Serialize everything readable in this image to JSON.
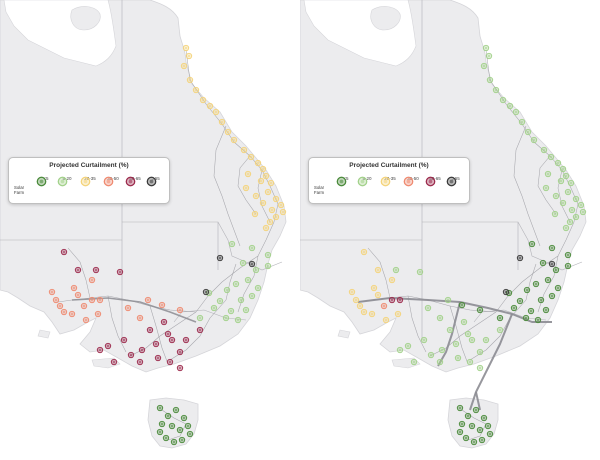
{
  "colors": {
    "land": "#ececee",
    "water": "#ffffff",
    "coast": "#d5d5d9",
    "state_border": "#b2b2b8",
    "network": "#9a9aa0",
    "interconnector": "#8c8c92"
  },
  "panels": [
    {
      "legend": {
        "title": "Projected Curtailment (%)",
        "marker_label": "Solar Farm",
        "bins": [
          {
            "label": "<5",
            "color": "#4a8a3a"
          },
          {
            "label": "5-20",
            "color": "#a2d18a"
          },
          {
            "label": "20-35",
            "color": "#f4d37a"
          },
          {
            "label": "35-50",
            "color": "#ef8a70"
          },
          {
            "label": "50-65",
            "color": "#9c2a4c"
          },
          {
            "label": ">65",
            "color": "#3a3a3a"
          }
        ]
      },
      "farms": [
        [
          186,
          48,
          2
        ],
        [
          189,
          56,
          2
        ],
        [
          184,
          66,
          2
        ],
        [
          190,
          80,
          2
        ],
        [
          196,
          90,
          2
        ],
        [
          203,
          100,
          2
        ],
        [
          210,
          106,
          2
        ],
        [
          216,
          112,
          2
        ],
        [
          222,
          122,
          2
        ],
        [
          228,
          132,
          2
        ],
        [
          234,
          140,
          2
        ],
        [
          244,
          150,
          2
        ],
        [
          251,
          157,
          2
        ],
        [
          258,
          163,
          2
        ],
        [
          263,
          169,
          2
        ],
        [
          266,
          176,
          2
        ],
        [
          271,
          183,
          2
        ],
        [
          268,
          192,
          2
        ],
        [
          276,
          199,
          2
        ],
        [
          281,
          205,
          2
        ],
        [
          272,
          210,
          2
        ],
        [
          263,
          203,
          2
        ],
        [
          256,
          196,
          2
        ],
        [
          246,
          188,
          2
        ],
        [
          248,
          174,
          2
        ],
        [
          255,
          214,
          2
        ],
        [
          276,
          217,
          2
        ],
        [
          283,
          212,
          2
        ],
        [
          270,
          222,
          2
        ],
        [
          266,
          228,
          2
        ],
        [
          261,
          181,
          2
        ],
        [
          232,
          244,
          1
        ],
        [
          252,
          248,
          1
        ],
        [
          268,
          255,
          1
        ],
        [
          243,
          263,
          1
        ],
        [
          256,
          270,
          1
        ],
        [
          268,
          266,
          1
        ],
        [
          248,
          280,
          1
        ],
        [
          236,
          284,
          1
        ],
        [
          227,
          290,
          1
        ],
        [
          258,
          288,
          1
        ],
        [
          241,
          300,
          1
        ],
        [
          220,
          301,
          1
        ],
        [
          231,
          311,
          1
        ],
        [
          209,
          293,
          1
        ],
        [
          252,
          296,
          1
        ],
        [
          238,
          320,
          1
        ],
        [
          214,
          308,
          1
        ],
        [
          226,
          318,
          1
        ],
        [
          200,
          318,
          1
        ],
        [
          246,
          310,
          1
        ],
        [
          220,
          258,
          5
        ],
        [
          206,
          292,
          5
        ],
        [
          252,
          264,
          5
        ],
        [
          64,
          252,
          4
        ],
        [
          78,
          270,
          4
        ],
        [
          96,
          270,
          4
        ],
        [
          120,
          272,
          4
        ],
        [
          150,
          330,
          4
        ],
        [
          168,
          334,
          4
        ],
        [
          156,
          344,
          4
        ],
        [
          142,
          350,
          4
        ],
        [
          131,
          355,
          4
        ],
        [
          140,
          362,
          4
        ],
        [
          114,
          362,
          4
        ],
        [
          100,
          350,
          4
        ],
        [
          158,
          358,
          4
        ],
        [
          172,
          340,
          4
        ],
        [
          180,
          352,
          4
        ],
        [
          186,
          340,
          4
        ],
        [
          180,
          368,
          4
        ],
        [
          170,
          362,
          4
        ],
        [
          164,
          322,
          4
        ],
        [
          200,
          330,
          4
        ],
        [
          124,
          340,
          4
        ],
        [
          108,
          346,
          4
        ],
        [
          56,
          300,
          3
        ],
        [
          64,
          312,
          3
        ],
        [
          78,
          295,
          3
        ],
        [
          84,
          306,
          3
        ],
        [
          92,
          300,
          3
        ],
        [
          98,
          314,
          3
        ],
        [
          74,
          288,
          3
        ],
        [
          86,
          320,
          3
        ],
        [
          92,
          280,
          3
        ],
        [
          100,
          300,
          3
        ],
        [
          52,
          292,
          3
        ],
        [
          128,
          308,
          3
        ],
        [
          140,
          318,
          3
        ],
        [
          162,
          305,
          3
        ],
        [
          180,
          310,
          3
        ],
        [
          148,
          300,
          3
        ],
        [
          60,
          306,
          3
        ],
        [
          72,
          314,
          3
        ],
        [
          160,
          408,
          0
        ],
        [
          168,
          416,
          0
        ],
        [
          176,
          410,
          0
        ],
        [
          184,
          418,
          0
        ],
        [
          162,
          424,
          0
        ],
        [
          172,
          426,
          0
        ],
        [
          180,
          430,
          0
        ],
        [
          188,
          426,
          0
        ],
        [
          166,
          438,
          0
        ],
        [
          174,
          442,
          0
        ],
        [
          182,
          440,
          0
        ],
        [
          190,
          434,
          0
        ],
        [
          160,
          432,
          0
        ]
      ],
      "show_interconnector": false
    },
    {
      "legend": {
        "title": "Projected Curtailment (%)",
        "marker_label": "Solar Farm",
        "bins": [
          {
            "label": "<5",
            "color": "#4a8a3a"
          },
          {
            "label": "5-20",
            "color": "#a2d18a"
          },
          {
            "label": "20-35",
            "color": "#f4d37a"
          },
          {
            "label": "35-50",
            "color": "#ef8a70"
          },
          {
            "label": "50-65",
            "color": "#9c2a4c"
          },
          {
            "label": ">65",
            "color": "#3a3a3a"
          }
        ]
      },
      "farms": [
        [
          186,
          48,
          1
        ],
        [
          189,
          56,
          1
        ],
        [
          184,
          66,
          1
        ],
        [
          190,
          80,
          1
        ],
        [
          196,
          90,
          1
        ],
        [
          203,
          100,
          1
        ],
        [
          210,
          106,
          1
        ],
        [
          216,
          112,
          1
        ],
        [
          222,
          122,
          1
        ],
        [
          228,
          132,
          1
        ],
        [
          234,
          140,
          1
        ],
        [
          244,
          150,
          1
        ],
        [
          251,
          157,
          1
        ],
        [
          258,
          163,
          1
        ],
        [
          263,
          169,
          1
        ],
        [
          266,
          176,
          1
        ],
        [
          271,
          183,
          1
        ],
        [
          268,
          192,
          1
        ],
        [
          276,
          199,
          1
        ],
        [
          281,
          205,
          1
        ],
        [
          272,
          210,
          1
        ],
        [
          263,
          203,
          1
        ],
        [
          256,
          196,
          1
        ],
        [
          246,
          188,
          1
        ],
        [
          248,
          174,
          1
        ],
        [
          255,
          214,
          1
        ],
        [
          276,
          217,
          1
        ],
        [
          283,
          212,
          1
        ],
        [
          270,
          222,
          1
        ],
        [
          266,
          228,
          1
        ],
        [
          261,
          181,
          1
        ],
        [
          232,
          244,
          0
        ],
        [
          252,
          248,
          0
        ],
        [
          268,
          255,
          0
        ],
        [
          243,
          263,
          0
        ],
        [
          256,
          270,
          0
        ],
        [
          268,
          266,
          0
        ],
        [
          248,
          280,
          0
        ],
        [
          236,
          284,
          0
        ],
        [
          227,
          290,
          0
        ],
        [
          258,
          288,
          0
        ],
        [
          241,
          300,
          0
        ],
        [
          220,
          301,
          0
        ],
        [
          231,
          311,
          0
        ],
        [
          209,
          293,
          0
        ],
        [
          252,
          296,
          0
        ],
        [
          238,
          320,
          0
        ],
        [
          214,
          308,
          0
        ],
        [
          226,
          318,
          0
        ],
        [
          200,
          318,
          0
        ],
        [
          246,
          310,
          0
        ],
        [
          220,
          258,
          5
        ],
        [
          206,
          292,
          5
        ],
        [
          252,
          264,
          5
        ],
        [
          64,
          252,
          2
        ],
        [
          78,
          270,
          2
        ],
        [
          96,
          270,
          1
        ],
        [
          120,
          272,
          1
        ],
        [
          150,
          330,
          1
        ],
        [
          168,
          334,
          1
        ],
        [
          156,
          344,
          1
        ],
        [
          142,
          350,
          1
        ],
        [
          131,
          355,
          1
        ],
        [
          140,
          362,
          1
        ],
        [
          114,
          362,
          1
        ],
        [
          100,
          350,
          1
        ],
        [
          158,
          358,
          1
        ],
        [
          172,
          340,
          1
        ],
        [
          180,
          352,
          1
        ],
        [
          186,
          340,
          1
        ],
        [
          180,
          368,
          1
        ],
        [
          170,
          362,
          1
        ],
        [
          164,
          322,
          1
        ],
        [
          200,
          330,
          1
        ],
        [
          124,
          340,
          1
        ],
        [
          108,
          346,
          1
        ],
        [
          56,
          300,
          2
        ],
        [
          64,
          312,
          2
        ],
        [
          78,
          295,
          2
        ],
        [
          84,
          306,
          3
        ],
        [
          92,
          300,
          4
        ],
        [
          98,
          314,
          2
        ],
        [
          74,
          288,
          2
        ],
        [
          86,
          320,
          2
        ],
        [
          92,
          280,
          2
        ],
        [
          100,
          300,
          4
        ],
        [
          52,
          292,
          2
        ],
        [
          128,
          308,
          1
        ],
        [
          140,
          318,
          1
        ],
        [
          162,
          305,
          0
        ],
        [
          180,
          310,
          0
        ],
        [
          148,
          300,
          1
        ],
        [
          60,
          306,
          2
        ],
        [
          72,
          314,
          2
        ],
        [
          160,
          408,
          0
        ],
        [
          168,
          416,
          0
        ],
        [
          176,
          410,
          0
        ],
        [
          184,
          418,
          0
        ],
        [
          162,
          424,
          0
        ],
        [
          172,
          426,
          0
        ],
        [
          180,
          430,
          0
        ],
        [
          188,
          426,
          0
        ],
        [
          166,
          438,
          0
        ],
        [
          174,
          442,
          0
        ],
        [
          182,
          440,
          0
        ],
        [
          190,
          434,
          0
        ],
        [
          160,
          432,
          0
        ]
      ],
      "show_interconnector": true
    }
  ]
}
